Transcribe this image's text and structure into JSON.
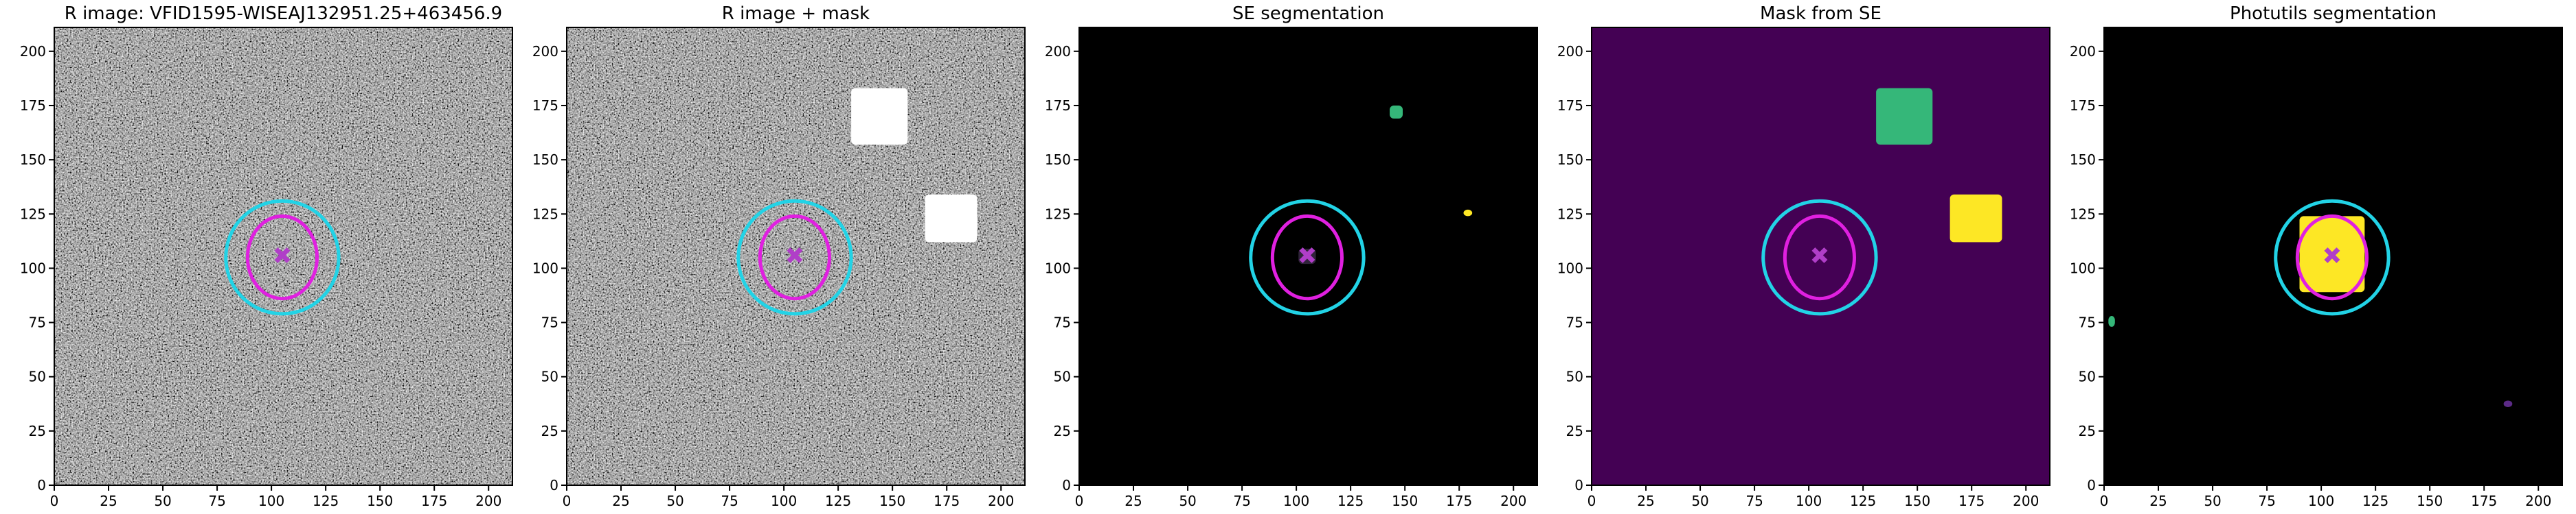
{
  "chart_data": [
    {
      "type": "image",
      "title": "R image: VFID1595-WISEAJ132951.25+463456.9",
      "background": "#5a5a5a",
      "noise": true,
      "xlim": [
        0,
        211
      ],
      "ylim": [
        0,
        211
      ],
      "xticks": [
        0,
        25,
        50,
        75,
        100,
        125,
        150,
        175,
        200
      ],
      "yticks": [
        0,
        25,
        50,
        75,
        100,
        125,
        150,
        175,
        200
      ],
      "regions": [],
      "ellipses": [
        {
          "cx": 105,
          "cy": 105,
          "rx": 26,
          "ry": 26,
          "color": "#22d3e6"
        },
        {
          "cx": 105,
          "cy": 105,
          "rx": 16,
          "ry": 19,
          "color": "#e020e0"
        }
      ],
      "markers": [
        {
          "x": 105,
          "y": 106,
          "color": "#b03ec8"
        }
      ]
    },
    {
      "type": "image",
      "title": "R image + mask",
      "background": "#5a5a5a",
      "noise": true,
      "xlim": [
        0,
        211
      ],
      "ylim": [
        0,
        211
      ],
      "xticks": [
        0,
        25,
        50,
        75,
        100,
        125,
        150,
        175,
        200
      ],
      "yticks": [
        0,
        25,
        50,
        75,
        100,
        125,
        150,
        175,
        200
      ],
      "regions": [
        {
          "x": [
            131,
            157
          ],
          "y": [
            157,
            183
          ],
          "color": "#ffffff"
        },
        {
          "x": [
            165,
            189
          ],
          "y": [
            112,
            134
          ],
          "color": "#ffffff"
        }
      ],
      "ellipses": [
        {
          "cx": 105,
          "cy": 105,
          "rx": 26,
          "ry": 26,
          "color": "#22d3e6"
        },
        {
          "cx": 105,
          "cy": 105,
          "rx": 16,
          "ry": 19,
          "color": "#e020e0"
        }
      ],
      "markers": [
        {
          "x": 105,
          "y": 106,
          "color": "#b03ec8"
        }
      ]
    },
    {
      "type": "image",
      "title": "SE segmentation",
      "background": "#000000",
      "noise": false,
      "xlim": [
        0,
        211
      ],
      "ylim": [
        0,
        211
      ],
      "xticks": [
        0,
        25,
        50,
        75,
        100,
        125,
        150,
        175,
        200
      ],
      "yticks": [
        0,
        25,
        50,
        75,
        100,
        125,
        150,
        175,
        200
      ],
      "regions": [
        {
          "x": [
            143,
            149
          ],
          "y": [
            169,
            175
          ],
          "color": "#35b779"
        },
        {
          "x": [
            177,
            181
          ],
          "y": [
            124,
            127
          ],
          "color": "#fde725"
        },
        {
          "x": [
            101,
            109
          ],
          "y": [
            102,
            109
          ],
          "color": "#30233a"
        }
      ],
      "ellipses": [
        {
          "cx": 105,
          "cy": 105,
          "rx": 26,
          "ry": 26,
          "color": "#22d3e6"
        },
        {
          "cx": 105,
          "cy": 105,
          "rx": 16,
          "ry": 19,
          "color": "#e020e0"
        }
      ],
      "markers": [
        {
          "x": 105,
          "y": 106,
          "color": "#b03ec8"
        }
      ]
    },
    {
      "type": "image",
      "title": "Mask from SE",
      "background": "#440154",
      "noise": false,
      "xlim": [
        0,
        211
      ],
      "ylim": [
        0,
        211
      ],
      "xticks": [
        0,
        25,
        50,
        75,
        100,
        125,
        150,
        175,
        200
      ],
      "yticks": [
        0,
        25,
        50,
        75,
        100,
        125,
        150,
        175,
        200
      ],
      "regions": [
        {
          "x": [
            131,
            157
          ],
          "y": [
            157,
            183
          ],
          "color": "#35b779"
        },
        {
          "x": [
            165,
            189
          ],
          "y": [
            112,
            134
          ],
          "color": "#fde725"
        }
      ],
      "ellipses": [
        {
          "cx": 105,
          "cy": 105,
          "rx": 26,
          "ry": 26,
          "color": "#22d3e6"
        },
        {
          "cx": 105,
          "cy": 105,
          "rx": 16,
          "ry": 19,
          "color": "#e020e0"
        }
      ],
      "markers": [
        {
          "x": 105,
          "y": 106,
          "color": "#b03ec8"
        }
      ]
    },
    {
      "type": "image",
      "title": "Photutils segmentation",
      "background": "#000000",
      "noise": false,
      "xlim": [
        0,
        211
      ],
      "ylim": [
        0,
        211
      ],
      "xticks": [
        0,
        25,
        50,
        75,
        100,
        125,
        150,
        175,
        200
      ],
      "yticks": [
        0,
        25,
        50,
        75,
        100,
        125,
        150,
        175,
        200
      ],
      "regions": [
        {
          "x": [
            90,
            120
          ],
          "y": [
            89,
            124
          ],
          "color": "#fde725"
        },
        {
          "x": [
            2,
            5
          ],
          "y": [
            73,
            78
          ],
          "color": "#35b779"
        },
        {
          "x": [
            184,
            188
          ],
          "y": [
            36,
            39
          ],
          "color": "#5b2a86"
        }
      ],
      "ellipses": [
        {
          "cx": 105,
          "cy": 105,
          "rx": 26,
          "ry": 26,
          "color": "#22d3e6"
        },
        {
          "cx": 105,
          "cy": 105,
          "rx": 16,
          "ry": 19,
          "color": "#e020e0"
        }
      ],
      "markers": [
        {
          "x": 105,
          "y": 106,
          "color": "#b03ec8"
        }
      ]
    }
  ]
}
